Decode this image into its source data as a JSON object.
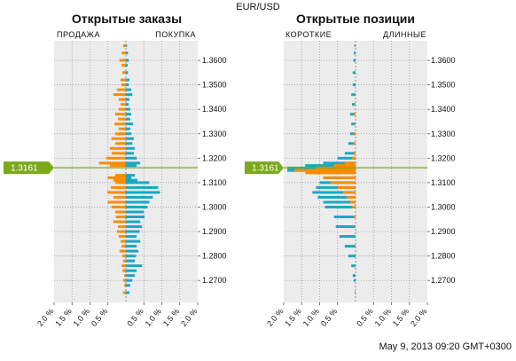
{
  "title": "EUR/USD",
  "timestamp": "May 9, 2013 09:20 GMT+0300",
  "current_price_label": "1.3161",
  "colors": {
    "sell": "#ff8c00",
    "buy": "#1aa7c2",
    "price_line": "#7aa91c",
    "flag": "#7aa91c",
    "plot_bg": "#ececec",
    "grid": "#8f8f8f"
  },
  "chart_data": [
    {
      "type": "bar",
      "orientation": "horizontal",
      "title": "Открытые заказы",
      "left_label": "ПРОДАЖА",
      "right_label": "ПОКУПКА",
      "y_ticks": [
        "1.3600",
        "1.3500",
        "1.3400",
        "1.3300",
        "1.3200",
        "1.3100",
        "1.3000",
        "1.2900",
        "1.2800",
        "1.2700"
      ],
      "x_ticks": [
        "2.0 %",
        "1.5 %",
        "1.0 %",
        "0.5 %",
        "0.5 %",
        "1.0 %",
        "1.5 %",
        "2.0 %"
      ],
      "ylim": [
        1.261,
        1.368
      ],
      "xlim_percent": [
        -2.0,
        2.0
      ],
      "current_price": 1.3161,
      "series": [
        {
          "name": "ПРОДАЖА",
          "color": "#ff8c00",
          "points": [
            [
              1.366,
              0.08
            ],
            [
              1.363,
              0.12
            ],
            [
              1.36,
              0.18
            ],
            [
              1.358,
              0.12
            ],
            [
              1.355,
              0.1
            ],
            [
              1.352,
              0.15
            ],
            [
              1.35,
              0.12
            ],
            [
              1.348,
              0.25
            ],
            [
              1.346,
              0.35
            ],
            [
              1.344,
              0.2
            ],
            [
              1.342,
              0.15
            ],
            [
              1.34,
              0.2
            ],
            [
              1.338,
              0.3
            ],
            [
              1.336,
              0.22
            ],
            [
              1.334,
              0.32
            ],
            [
              1.332,
              0.2
            ],
            [
              1.33,
              0.3
            ],
            [
              1.328,
              0.4
            ],
            [
              1.326,
              0.3
            ],
            [
              1.324,
              0.45
            ],
            [
              1.322,
              0.4
            ],
            [
              1.32,
              0.55
            ],
            [
              1.318,
              0.75
            ],
            [
              1.317,
              0.45
            ],
            [
              1.313,
              0.3
            ],
            [
              1.312,
              0.5
            ],
            [
              1.311,
              0.35
            ],
            [
              1.31,
              0.3
            ],
            [
              1.308,
              0.42
            ],
            [
              1.306,
              0.52
            ],
            [
              1.304,
              0.35
            ],
            [
              1.302,
              0.5
            ],
            [
              1.3,
              0.4
            ],
            [
              1.298,
              0.3
            ],
            [
              1.296,
              0.28
            ],
            [
              1.294,
              0.35
            ],
            [
              1.292,
              0.22
            ],
            [
              1.29,
              0.25
            ],
            [
              1.288,
              0.2
            ],
            [
              1.286,
              0.15
            ],
            [
              1.284,
              0.12
            ],
            [
              1.282,
              0.18
            ],
            [
              1.28,
              0.1
            ],
            [
              1.278,
              0.08
            ],
            [
              1.276,
              0.12
            ],
            [
              1.274,
              0.1
            ],
            [
              1.272,
              0.05
            ],
            [
              1.27,
              0.08
            ],
            [
              1.268,
              0.05
            ],
            [
              1.265,
              0.08
            ]
          ]
        },
        {
          "name": "ПОКУПКА",
          "color": "#1aa7c2",
          "points": [
            [
              1.366,
              0.03
            ],
            [
              1.363,
              0.06
            ],
            [
              1.36,
              0.08
            ],
            [
              1.358,
              0.05
            ],
            [
              1.355,
              0.06
            ],
            [
              1.352,
              0.1
            ],
            [
              1.35,
              0.08
            ],
            [
              1.348,
              0.15
            ],
            [
              1.346,
              0.18
            ],
            [
              1.344,
              0.1
            ],
            [
              1.342,
              0.08
            ],
            [
              1.34,
              0.12
            ],
            [
              1.338,
              0.15
            ],
            [
              1.336,
              0.12
            ],
            [
              1.334,
              0.2
            ],
            [
              1.332,
              0.12
            ],
            [
              1.33,
              0.15
            ],
            [
              1.328,
              0.22
            ],
            [
              1.326,
              0.18
            ],
            [
              1.324,
              0.25
            ],
            [
              1.322,
              0.22
            ],
            [
              1.32,
              0.3
            ],
            [
              1.318,
              0.4
            ],
            [
              1.317,
              0.3
            ],
            [
              1.313,
              0.25
            ],
            [
              1.312,
              0.15
            ],
            [
              1.311,
              0.32
            ],
            [
              1.31,
              0.65
            ],
            [
              1.308,
              0.9
            ],
            [
              1.306,
              0.95
            ],
            [
              1.304,
              0.75
            ],
            [
              1.302,
              0.65
            ],
            [
              1.3,
              0.6
            ],
            [
              1.298,
              0.5
            ],
            [
              1.296,
              0.52
            ],
            [
              1.294,
              0.4
            ],
            [
              1.292,
              0.45
            ],
            [
              1.29,
              0.38
            ],
            [
              1.288,
              0.3
            ],
            [
              1.286,
              0.4
            ],
            [
              1.284,
              0.3
            ],
            [
              1.282,
              0.35
            ],
            [
              1.28,
              0.28
            ],
            [
              1.278,
              0.25
            ],
            [
              1.276,
              0.45
            ],
            [
              1.274,
              0.3
            ],
            [
              1.272,
              0.25
            ],
            [
              1.27,
              0.18
            ],
            [
              1.268,
              0.12
            ],
            [
              1.265,
              0.1
            ]
          ]
        }
      ]
    },
    {
      "type": "bar",
      "orientation": "horizontal",
      "title": "Открытые позиции",
      "left_label": "КОРОТКИЕ",
      "right_label": "ДЛИННЫЕ",
      "y_ticks": [
        "1.3600",
        "1.3500",
        "1.3400",
        "1.3300",
        "1.3200",
        "1.3100",
        "1.3000",
        "1.2900",
        "1.2800",
        "1.2700"
      ],
      "x_ticks": [
        "2.0 %",
        "1.5 %",
        "1.0 %",
        "0.5 %",
        "0.5 %",
        "1.0 %",
        "1.5 %",
        "2.0 %"
      ],
      "ylim": [
        1.261,
        1.368
      ],
      "xlim_percent": [
        -2.0,
        2.0
      ],
      "current_price": 1.3161,
      "series": [
        {
          "name": "КОРОТКИЕ / ДЛИННЫЕ (orange)",
          "color": "#ff8c00",
          "points": [
            [
              1.366,
              0.0
            ],
            [
              1.36,
              0.0
            ],
            [
              1.35,
              0.0
            ],
            [
              1.346,
              0.02
            ],
            [
              1.342,
              0.03
            ],
            [
              1.338,
              0.05
            ],
            [
              1.334,
              0.03
            ],
            [
              1.33,
              0.05
            ],
            [
              1.326,
              0.06
            ],
            [
              1.322,
              0.05
            ],
            [
              1.32,
              0.1
            ],
            [
              1.318,
              0.3
            ],
            [
              1.317,
              0.6
            ],
            [
              1.316,
              1.1
            ],
            [
              1.315,
              1.7
            ],
            [
              1.314,
              1.4
            ],
            [
              1.312,
              0.9
            ],
            [
              1.31,
              0.7
            ],
            [
              1.308,
              0.5
            ],
            [
              1.306,
              0.35
            ],
            [
              1.304,
              0.25
            ],
            [
              1.302,
              0.15
            ],
            [
              1.3,
              0.1
            ],
            [
              1.296,
              0.05
            ],
            [
              1.292,
              0.03
            ],
            [
              1.288,
              0.02
            ],
            [
              1.284,
              0.02
            ],
            [
              1.28,
              0.01
            ],
            [
              1.276,
              0.01
            ],
            [
              1.27,
              0.0
            ]
          ]
        },
        {
          "name": "КОРОТКИЕ / ДЛИННЫЕ (teal)",
          "color": "#1aa7c2",
          "points": [
            [
              1.366,
              0.03
            ],
            [
              1.363,
              0.05
            ],
            [
              1.36,
              0.06
            ],
            [
              1.355,
              0.08
            ],
            [
              1.35,
              0.08
            ],
            [
              1.346,
              0.12
            ],
            [
              1.342,
              0.1
            ],
            [
              1.338,
              0.15
            ],
            [
              1.334,
              0.12
            ],
            [
              1.33,
              0.15
            ],
            [
              1.326,
              0.2
            ],
            [
              1.322,
              0.3
            ],
            [
              1.32,
              0.5
            ],
            [
              1.318,
              0.9
            ],
            [
              1.317,
              1.4
            ],
            [
              1.316,
              1.9
            ],
            [
              1.315,
              1.9
            ],
            [
              1.314,
              1.3
            ],
            [
              1.312,
              0.9
            ],
            [
              1.31,
              1.0
            ],
            [
              1.308,
              1.1
            ],
            [
              1.306,
              1.2
            ],
            [
              1.304,
              1.05
            ],
            [
              1.302,
              0.9
            ],
            [
              1.3,
              0.85
            ],
            [
              1.296,
              0.6
            ],
            [
              1.292,
              0.55
            ],
            [
              1.288,
              0.45
            ],
            [
              1.284,
              0.3
            ],
            [
              1.28,
              0.2
            ],
            [
              1.276,
              0.12
            ],
            [
              1.272,
              0.08
            ],
            [
              1.27,
              0.05
            ],
            [
              1.265,
              0.02
            ]
          ]
        }
      ]
    }
  ]
}
